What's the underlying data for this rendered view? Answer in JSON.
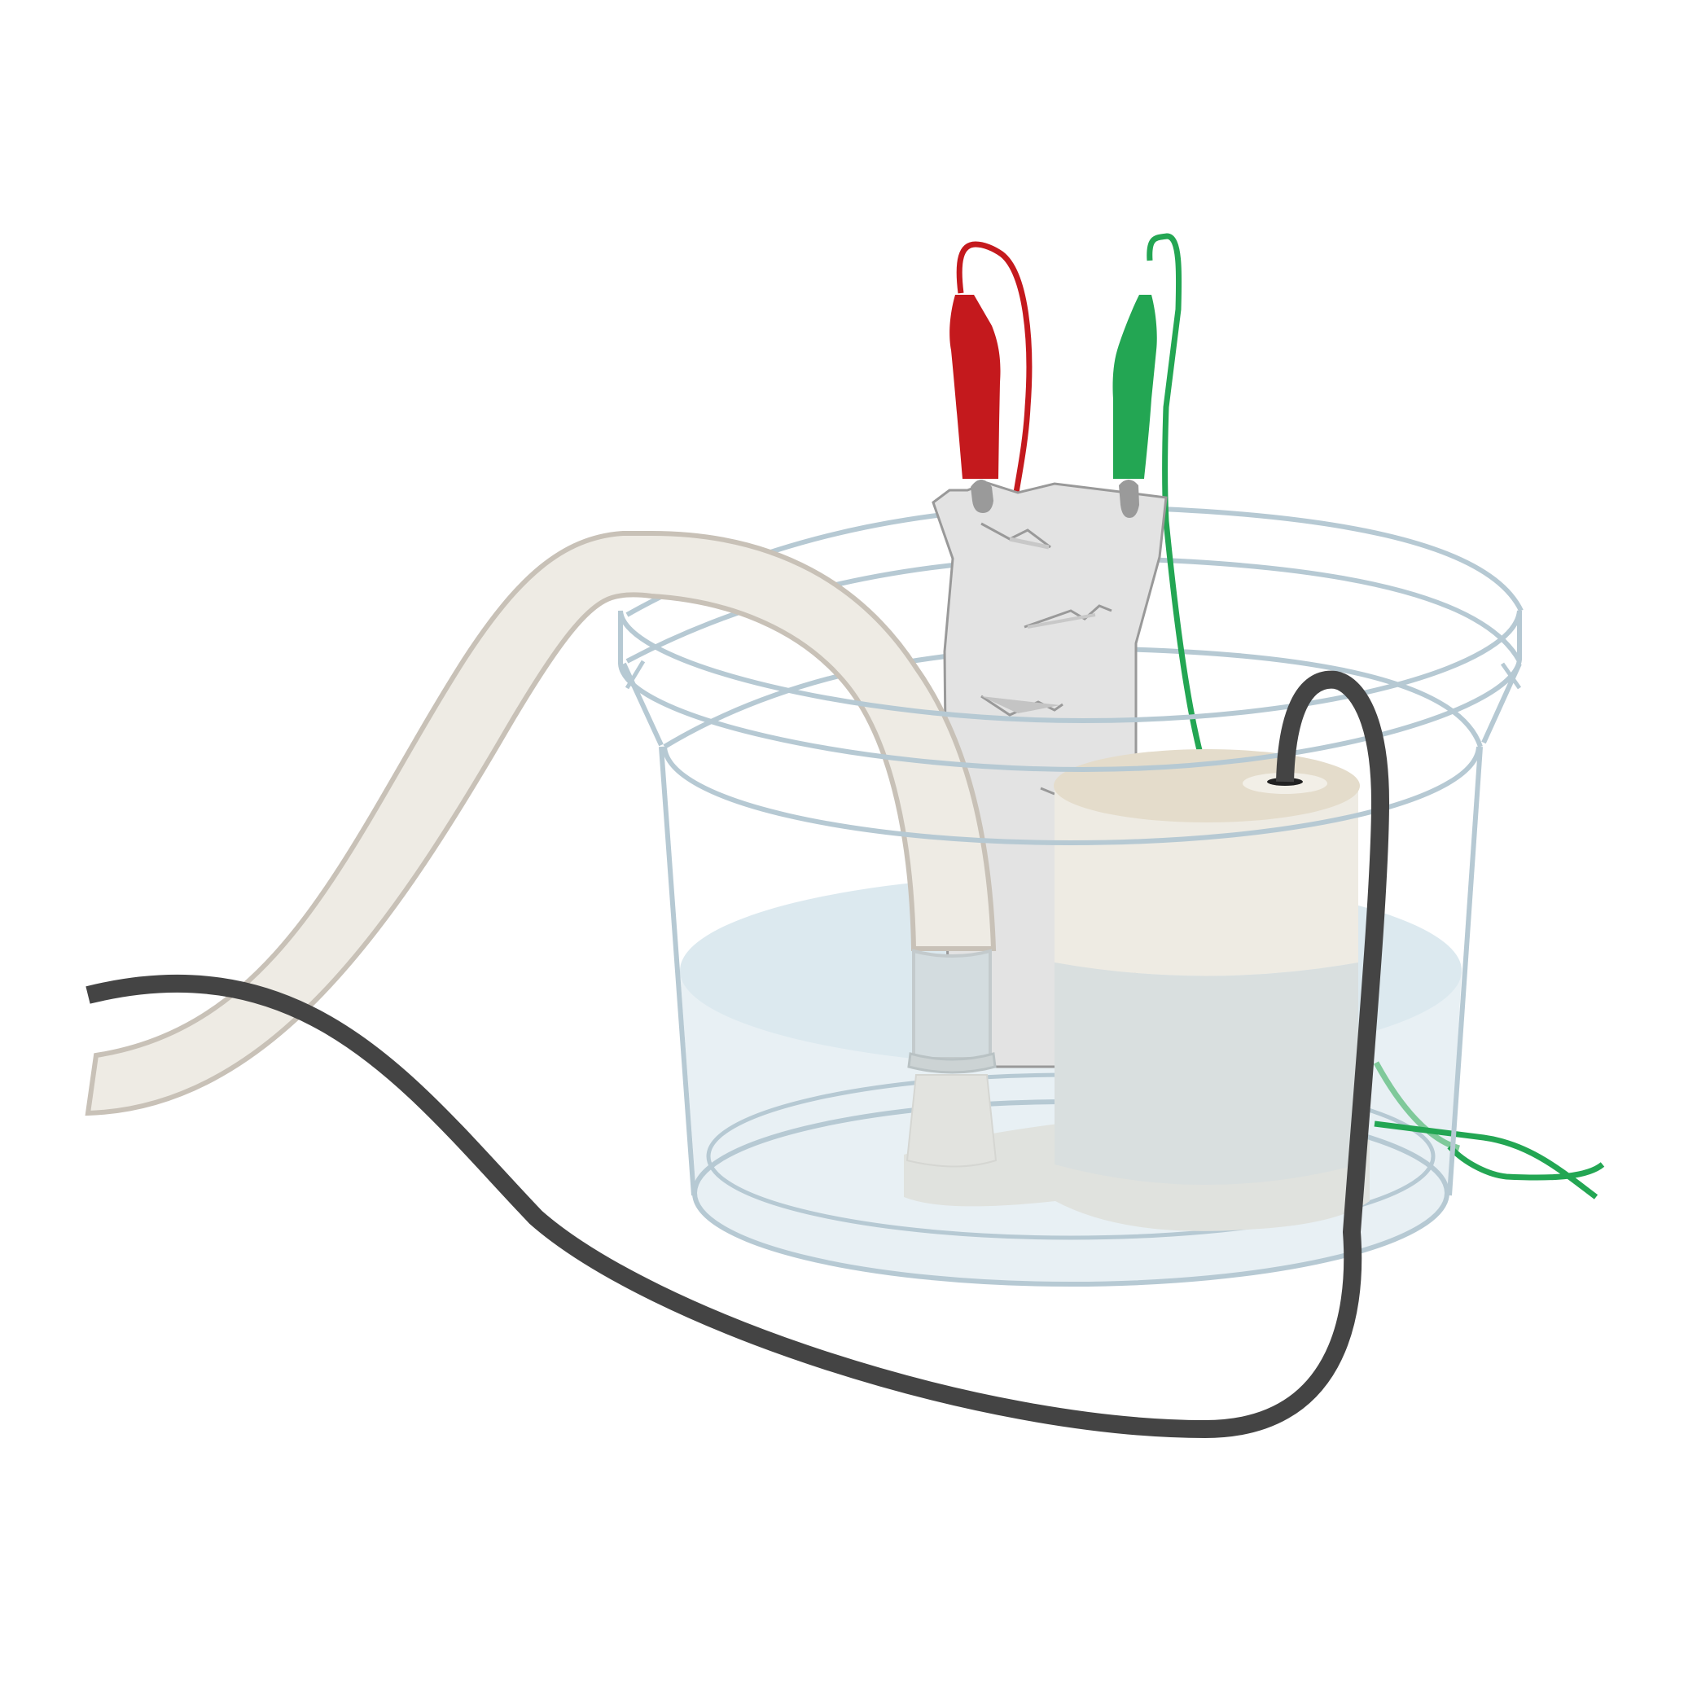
{
  "diagram": {
    "subject": "",
    "colors": {
      "background": "#ffffff",
      "bucket_outline": "#b6c9d3",
      "water_fill": "#dce9ef",
      "water_light": "#e8f0f4",
      "hose_fill": "#eeebe4",
      "hose_outline": "#c8c1b7",
      "pump_body": "#eeebe3",
      "pump_top": "#e4dccb",
      "electrode_plate": "#e3e3e3",
      "electrode_outline": "#999999",
      "red_clip": "#c4191d",
      "green_clip": "#23a653",
      "power_cord": "#444444",
      "clip_metal": "#9a9a9a"
    },
    "components": [
      {
        "id": "bucket",
        "icon": "bucket-icon"
      },
      {
        "id": "water",
        "icon": "water-icon"
      },
      {
        "id": "electrode-plate",
        "icon": "plate-icon"
      },
      {
        "id": "red-alligator-clip",
        "icon": "clip-icon"
      },
      {
        "id": "green-alligator-clip",
        "icon": "clip-icon"
      },
      {
        "id": "outlet-hose",
        "icon": "hose-icon"
      },
      {
        "id": "submersible-pump",
        "icon": "pump-icon"
      },
      {
        "id": "power-cord",
        "icon": "cable-icon"
      }
    ]
  }
}
